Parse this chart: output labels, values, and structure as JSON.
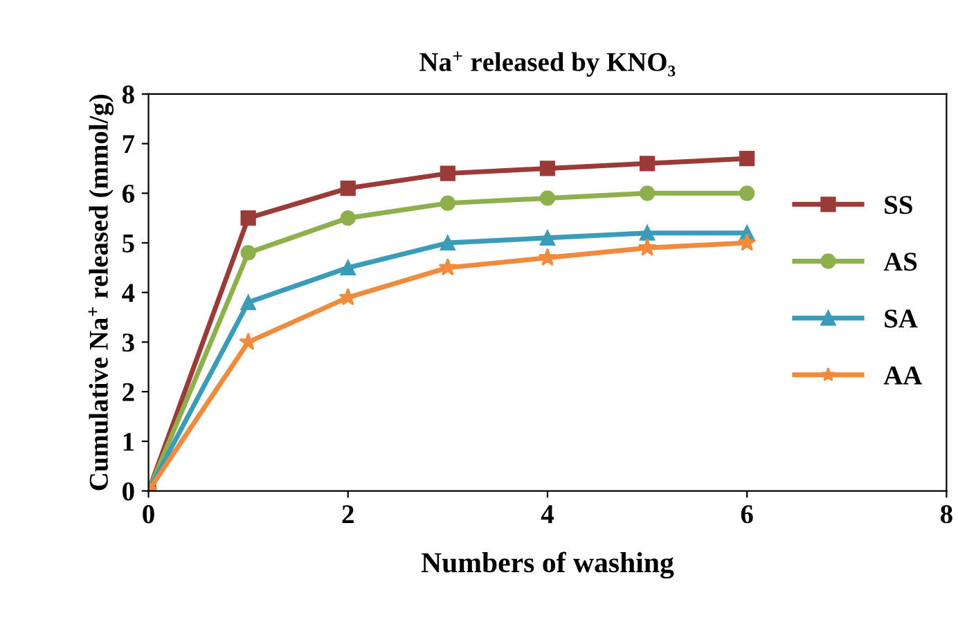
{
  "chart_data": {
    "type": "line",
    "title": "Na$^{+}$ released by KNO₃",
    "xlabel": "Numbers of washing",
    "ylabel": "Cumulative Na$^{+}$ released (mmol/g)",
    "x": [
      0,
      1,
      2,
      3,
      4,
      5,
      6
    ],
    "series": [
      {
        "name": "SS",
        "color": "#9b3b37",
        "marker": "square",
        "values": [
          0,
          5.5,
          6.1,
          6.4,
          6.5,
          6.6,
          6.7
        ]
      },
      {
        "name": "AS",
        "color": "#8db04d",
        "marker": "circle",
        "values": [
          0,
          4.8,
          5.5,
          5.8,
          5.9,
          6.0,
          6.0
        ]
      },
      {
        "name": "SA",
        "color": "#3a9cb8",
        "marker": "triangle",
        "values": [
          0,
          3.8,
          4.5,
          5.0,
          5.1,
          5.2,
          5.2
        ]
      },
      {
        "name": "AA",
        "color": "#f08a3c",
        "marker": "star",
        "values": [
          0,
          3.0,
          3.9,
          4.5,
          4.7,
          4.9,
          5.0
        ]
      }
    ],
    "xlim": [
      0,
      8
    ],
    "xticks": [
      0,
      2,
      4,
      6,
      8
    ],
    "ylim": [
      0,
      8
    ],
    "yticks": [
      0,
      1,
      2,
      3,
      4,
      5,
      6,
      7,
      8
    ],
    "grid": false,
    "legend": "center right",
    "line_style": "solid"
  }
}
